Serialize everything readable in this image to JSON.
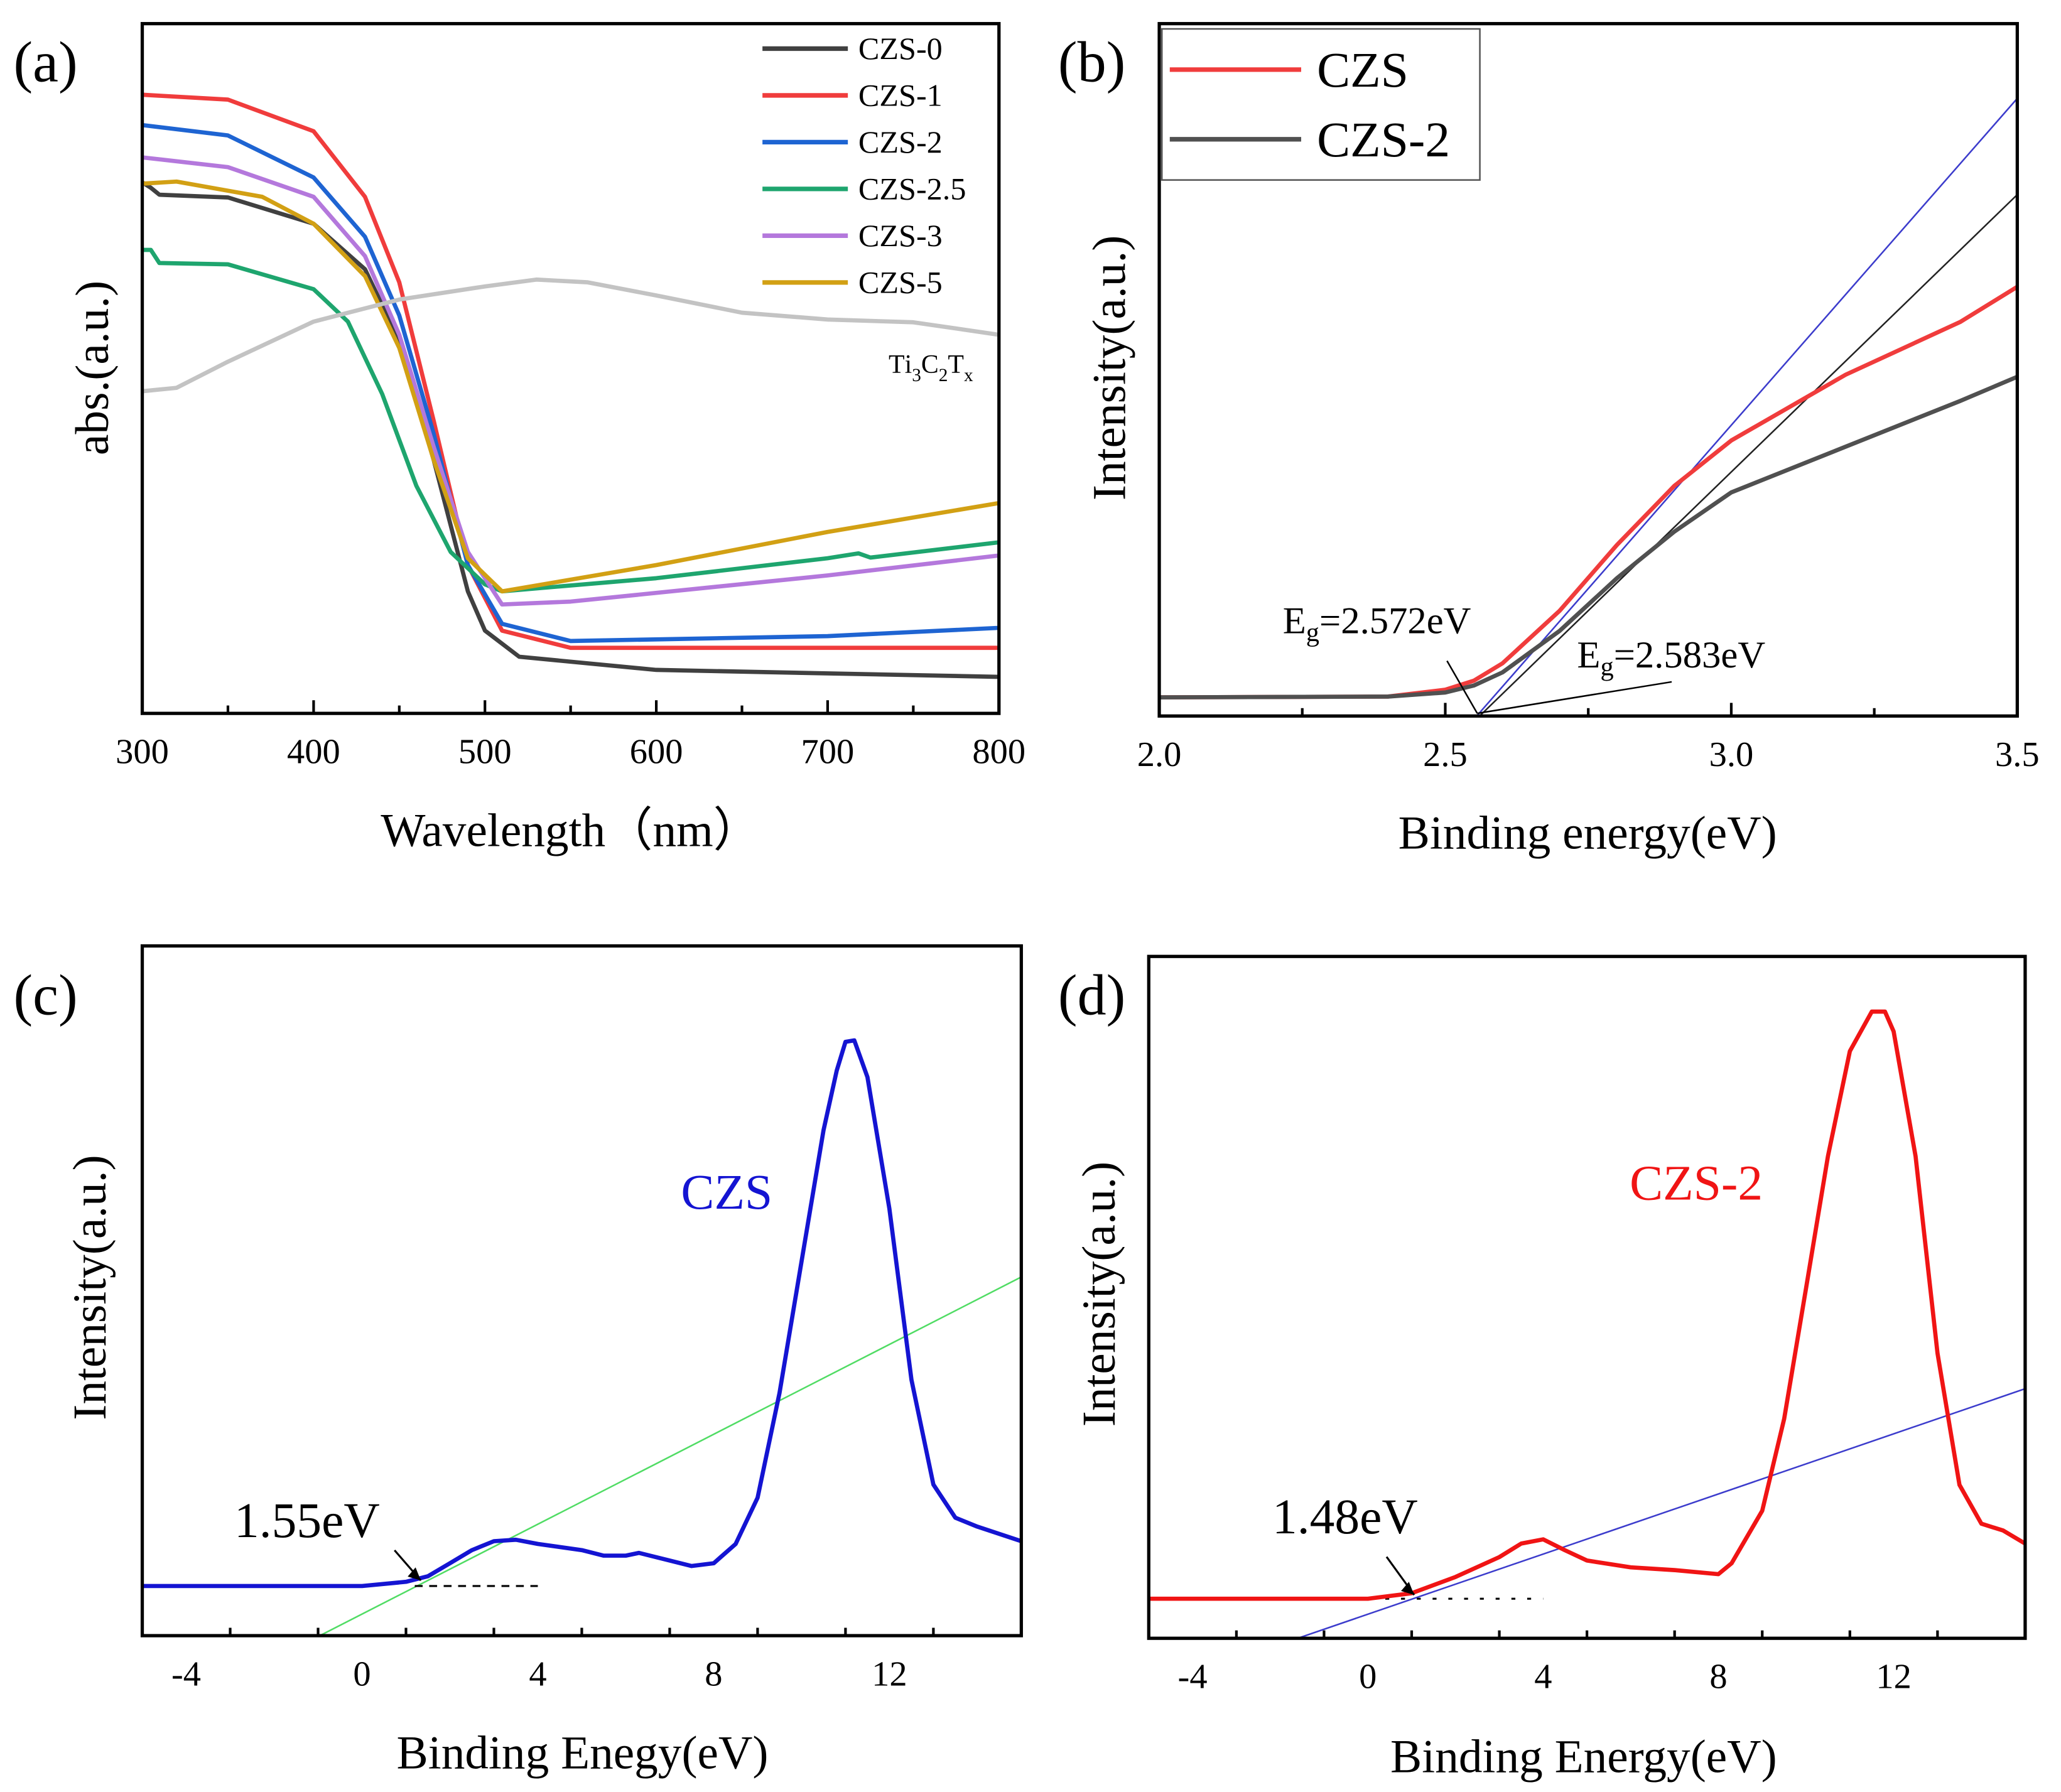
{
  "chart_data": [
    {
      "panel": "(a)",
      "type": "line",
      "xlabel": "Wavelength（nm）",
      "ylabel": "abs.(a.u.)",
      "xlim": [
        300,
        800
      ],
      "ylim": [
        0,
        1
      ],
      "xticks": [
        300,
        400,
        500,
        600,
        700,
        800
      ],
      "legend": "top-right",
      "series": [
        {
          "name": "CZS-0",
          "color": "#404040",
          "x": [
            300,
            305,
            310,
            350,
            400,
            430,
            450,
            470,
            490,
            500,
            520,
            600,
            800
          ],
          "y": [
            0.77,
            0.762,
            0.752,
            0.748,
            0.71,
            0.644,
            0.54,
            0.368,
            0.177,
            0.12,
            0.082,
            0.063,
            0.053
          ]
        },
        {
          "name": "CZS-1",
          "color": "#f03c3c",
          "x": [
            300,
            350,
            400,
            430,
            450,
            470,
            490,
            510,
            550,
            800
          ],
          "y": [
            0.897,
            0.89,
            0.844,
            0.749,
            0.625,
            0.425,
            0.215,
            0.12,
            0.095,
            0.095
          ]
        },
        {
          "name": "CZS-2",
          "color": "#1e64d2",
          "x": [
            300,
            350,
            400,
            430,
            450,
            470,
            490,
            510,
            550,
            700,
            800
          ],
          "y": [
            0.853,
            0.838,
            0.777,
            0.691,
            0.577,
            0.406,
            0.215,
            0.13,
            0.105,
            0.112,
            0.124
          ]
        },
        {
          "name": "CZS-2.5",
          "color": "#1ea56e",
          "x": [
            300,
            305,
            310,
            350,
            400,
            420,
            440,
            460,
            480,
            500,
            510,
            600,
            700,
            718,
            725,
            800
          ],
          "y": [
            0.672,
            0.672,
            0.653,
            0.651,
            0.615,
            0.568,
            0.463,
            0.33,
            0.234,
            0.187,
            0.177,
            0.196,
            0.225,
            0.232,
            0.226,
            0.248
          ]
        },
        {
          "name": "CZS-3",
          "color": "#b478dc",
          "x": [
            300,
            350,
            400,
            430,
            450,
            470,
            490,
            510,
            550,
            700,
            800
          ],
          "y": [
            0.806,
            0.792,
            0.749,
            0.663,
            0.549,
            0.387,
            0.234,
            0.158,
            0.162,
            0.2,
            0.229
          ]
        },
        {
          "name": "CZS-5",
          "color": "#d2a014",
          "x": [
            300,
            320,
            370,
            400,
            430,
            450,
            470,
            490,
            510,
            600,
            700,
            800
          ],
          "y": [
            0.768,
            0.771,
            0.749,
            0.71,
            0.634,
            0.53,
            0.368,
            0.225,
            0.177,
            0.215,
            0.263,
            0.305
          ]
        },
        {
          "name": "Ti3C2Tx",
          "color": "#c3c3c3",
          "x": [
            300,
            320,
            350,
            400,
            450,
            500,
            530,
            560,
            600,
            650,
            700,
            750,
            800
          ],
          "y": [
            0.467,
            0.472,
            0.51,
            0.568,
            0.6,
            0.619,
            0.629,
            0.625,
            0.606,
            0.581,
            0.571,
            0.567,
            0.549
          ]
        }
      ],
      "annotations": [
        {
          "text": "Ti3C2Tx"
        }
      ]
    },
    {
      "panel": "(b)",
      "type": "line",
      "xlabel": "Binding energy(eV)",
      "ylabel": "Intensity(a.u.)",
      "xlim": [
        2.0,
        3.5
      ],
      "ylim": [
        0,
        1
      ],
      "xticks": [
        "2.0",
        "2.5",
        "3.0",
        "3.5"
      ],
      "legend": "top-left",
      "series": [
        {
          "name": "CZS",
          "color": "#f03c3c",
          "x": [
            2.0,
            2.4,
            2.5,
            2.55,
            2.6,
            2.7,
            2.8,
            2.9,
            3.0,
            3.2,
            3.4,
            3.5
          ],
          "y": [
            0.027,
            0.028,
            0.038,
            0.051,
            0.076,
            0.152,
            0.247,
            0.332,
            0.398,
            0.493,
            0.569,
            0.62
          ]
        },
        {
          "name": "CZS-2",
          "color": "#505050",
          "x": [
            2.0,
            2.4,
            2.5,
            2.55,
            2.6,
            2.7,
            2.8,
            2.9,
            3.0,
            3.2,
            3.4,
            3.5
          ],
          "y": [
            0.027,
            0.028,
            0.034,
            0.044,
            0.063,
            0.123,
            0.199,
            0.266,
            0.323,
            0.389,
            0.455,
            0.49
          ]
        }
      ],
      "fit_lines": [
        {
          "color": "#3c3ccc",
          "x": [
            2.555,
            3.5
          ],
          "y": [
            0,
            0.892
          ]
        },
        {
          "color": "#222222",
          "x": [
            2.56,
            3.5
          ],
          "y": [
            0,
            0.753
          ]
        }
      ],
      "annotations": [
        {
          "text": "Eg=2.572eV"
        },
        {
          "text": "Eg=2.583eV"
        }
      ]
    },
    {
      "panel": "(c)",
      "type": "line",
      "xlabel": "Binding Enegy(eV)",
      "ylabel": "Intensity(a.u.)",
      "xlim": [
        -5,
        15
      ],
      "ylim": [
        0,
        1
      ],
      "xticks": [
        -4,
        0,
        4,
        8,
        12
      ],
      "series": [
        {
          "name": "CZS",
          "color": "#1414d2",
          "x": [
            -5,
            0,
            1,
            1.5,
            2,
            2.5,
            3,
            3.5,
            4,
            5,
            5.5,
            6,
            6.3,
            7,
            7.5,
            8,
            8.5,
            9,
            9.5,
            10,
            10.5,
            10.8,
            11,
            11.2,
            11.5,
            12,
            12.5,
            13,
            13.5,
            14,
            15
          ],
          "y": [
            0.072,
            0.072,
            0.078,
            0.086,
            0.105,
            0.124,
            0.137,
            0.139,
            0.133,
            0.124,
            0.116,
            0.116,
            0.12,
            0.109,
            0.101,
            0.105,
            0.133,
            0.2,
            0.352,
            0.543,
            0.733,
            0.819,
            0.861,
            0.863,
            0.81,
            0.619,
            0.371,
            0.219,
            0.171,
            0.158,
            0.137
          ]
        }
      ],
      "fit_lines": [
        {
          "color": "#50dc64",
          "x": [
            -0.96,
            15
          ],
          "y": [
            0,
            0.52
          ]
        }
      ],
      "baseline": {
        "x": [
          1.2,
          4
        ],
        "y": 0.072
      },
      "annotations": [
        {
          "text": "1.55eV"
        },
        {
          "text": "CZS",
          "color": "#1414d2"
        }
      ]
    },
    {
      "panel": "(d)",
      "type": "line",
      "xlabel": "Binding Energy(eV)",
      "ylabel": "Intensity(a.u.)",
      "xlim": [
        -5,
        15
      ],
      "ylim": [
        0,
        1
      ],
      "xticks": [
        -4,
        0,
        4,
        8,
        12
      ],
      "series": [
        {
          "name": "CZS-2",
          "color": "#f01414",
          "x": [
            -5,
            0,
            1,
            2,
            3,
            3.5,
            4,
            4.5,
            5,
            6,
            7,
            8,
            8.3,
            9,
            9.5,
            10,
            10.5,
            11,
            11.5,
            11.8,
            12,
            12.5,
            13,
            13.5,
            14,
            14.5,
            15
          ],
          "y": [
            0.058,
            0.058,
            0.066,
            0.09,
            0.119,
            0.139,
            0.145,
            0.129,
            0.114,
            0.104,
            0.1,
            0.094,
            0.11,
            0.187,
            0.322,
            0.514,
            0.707,
            0.861,
            0.919,
            0.919,
            0.89,
            0.707,
            0.418,
            0.225,
            0.168,
            0.158,
            0.139
          ]
        }
      ],
      "fit_lines": [
        {
          "color": "#3c3ccc",
          "x": [
            -1.6,
            15
          ],
          "y": [
            0,
            0.366
          ]
        }
      ],
      "baseline": {
        "x": [
          -5,
          4
        ],
        "y": 0.058
      },
      "annotations": [
        {
          "text": "1.48eV"
        },
        {
          "text": "CZS-2",
          "color": "#f01414"
        }
      ]
    }
  ]
}
